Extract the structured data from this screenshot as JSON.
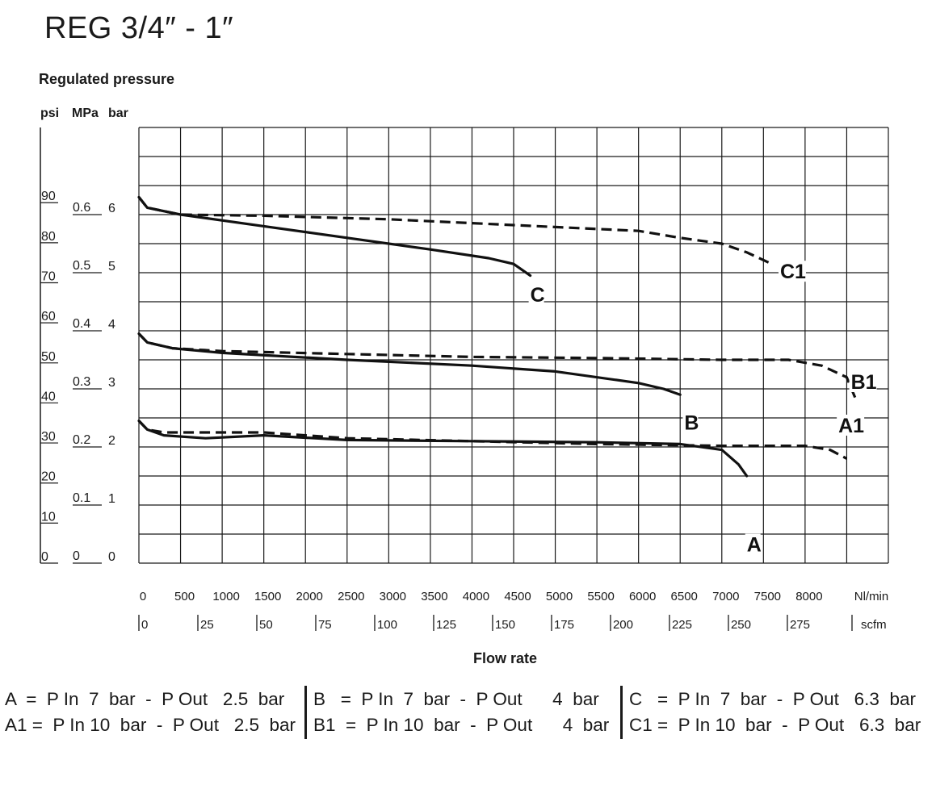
{
  "title": "REG 3/4″ - 1″",
  "chart_data": {
    "type": "line",
    "title": "REG 3/4″ - 1″",
    "ylabel": "Regulated pressure",
    "xlabel": "Flow rate",
    "y_units": [
      "psi",
      "MPa",
      "bar"
    ],
    "x_units": [
      "Nl/min",
      "scfm"
    ],
    "y_ticks_psi": [
      "0",
      "10",
      "20",
      "30",
      "40",
      "50",
      "60",
      "70",
      "80",
      "90"
    ],
    "y_ticks_mpa": [
      "0",
      "0.1",
      "0.2",
      "0.3",
      "0.4",
      "0.5",
      "0.6"
    ],
    "y_ticks_bar": [
      "0",
      "1",
      "2",
      "3",
      "4",
      "5",
      "6"
    ],
    "x_ticks_nlmin": [
      "0",
      "500",
      "1000",
      "1500",
      "2000",
      "2500",
      "3000",
      "3500",
      "4000",
      "4500",
      "5000",
      "5500",
      "6000",
      "6500",
      "7000",
      "7500",
      "8000"
    ],
    "x_ticks_scfm": [
      "0",
      "25",
      "50",
      "75",
      "100",
      "125",
      "150",
      "175",
      "200",
      "225",
      "250",
      "275"
    ],
    "xlim": [
      0,
      9000
    ],
    "ylim": [
      0,
      7.5
    ],
    "grid": true,
    "series": [
      {
        "name": "A",
        "style": "solid",
        "label_at": [
          7300,
          0.2
        ],
        "points": [
          [
            0,
            2.45
          ],
          [
            100,
            2.3
          ],
          [
            300,
            2.2
          ],
          [
            800,
            2.15
          ],
          [
            1500,
            2.2
          ],
          [
            2500,
            2.12
          ],
          [
            4000,
            2.1
          ],
          [
            5500,
            2.08
          ],
          [
            6500,
            2.05
          ],
          [
            7000,
            1.95
          ],
          [
            7200,
            1.7
          ],
          [
            7300,
            1.5
          ]
        ]
      },
      {
        "name": "A1",
        "style": "dashed",
        "label_at": [
          8400,
          2.25
        ],
        "points": [
          [
            0,
            2.45
          ],
          [
            100,
            2.3
          ],
          [
            300,
            2.25
          ],
          [
            1500,
            2.25
          ],
          [
            2500,
            2.15
          ],
          [
            4000,
            2.1
          ],
          [
            5500,
            2.05
          ],
          [
            7000,
            2.02
          ],
          [
            8000,
            2.02
          ],
          [
            8300,
            1.95
          ],
          [
            8500,
            1.8
          ]
        ]
      },
      {
        "name": "B",
        "style": "solid",
        "label_at": [
          6550,
          2.3
        ],
        "points": [
          [
            0,
            3.95
          ],
          [
            100,
            3.8
          ],
          [
            400,
            3.7
          ],
          [
            1000,
            3.62
          ],
          [
            2500,
            3.5
          ],
          [
            4000,
            3.4
          ],
          [
            5000,
            3.3
          ],
          [
            6000,
            3.1
          ],
          [
            6300,
            3.0
          ],
          [
            6500,
            2.9
          ]
        ]
      },
      {
        "name": "B1",
        "style": "dashed",
        "label_at": [
          8550,
          3.0
        ],
        "points": [
          [
            0,
            3.95
          ],
          [
            100,
            3.8
          ],
          [
            400,
            3.7
          ],
          [
            1000,
            3.65
          ],
          [
            2500,
            3.6
          ],
          [
            4000,
            3.55
          ],
          [
            5500,
            3.53
          ],
          [
            7000,
            3.5
          ],
          [
            7800,
            3.5
          ],
          [
            8200,
            3.4
          ],
          [
            8500,
            3.2
          ],
          [
            8600,
            2.85
          ]
        ]
      },
      {
        "name": "C",
        "style": "solid",
        "label_at": [
          4700,
          4.5
        ],
        "points": [
          [
            0,
            6.3
          ],
          [
            100,
            6.12
          ],
          [
            500,
            6.0
          ],
          [
            1500,
            5.8
          ],
          [
            2500,
            5.6
          ],
          [
            3500,
            5.4
          ],
          [
            4200,
            5.25
          ],
          [
            4500,
            5.15
          ],
          [
            4700,
            4.95
          ]
        ]
      },
      {
        "name": "C1",
        "style": "dashed",
        "label_at": [
          7700,
          4.9
        ],
        "points": [
          [
            0,
            6.3
          ],
          [
            100,
            6.12
          ],
          [
            500,
            6.0
          ],
          [
            1500,
            5.98
          ],
          [
            3000,
            5.92
          ],
          [
            4500,
            5.82
          ],
          [
            6000,
            5.72
          ],
          [
            6500,
            5.6
          ],
          [
            7000,
            5.5
          ],
          [
            7300,
            5.35
          ],
          [
            7600,
            5.15
          ]
        ]
      }
    ]
  },
  "legend": {
    "col1": [
      "A  =  P In  7  bar  -  P Out   2.5  bar",
      "A1 =  P In 10  bar  -  P Out   2.5  bar"
    ],
    "col2": [
      "B   =  P In  7  bar  -  P Out      4  bar",
      "B1  =  P In 10  bar  -  P Out      4  bar"
    ],
    "col3": [
      "C   =  P In  7  bar  -  P Out   6.3  bar",
      "C1 =  P In 10  bar  -  P Out   6.3  bar"
    ]
  }
}
